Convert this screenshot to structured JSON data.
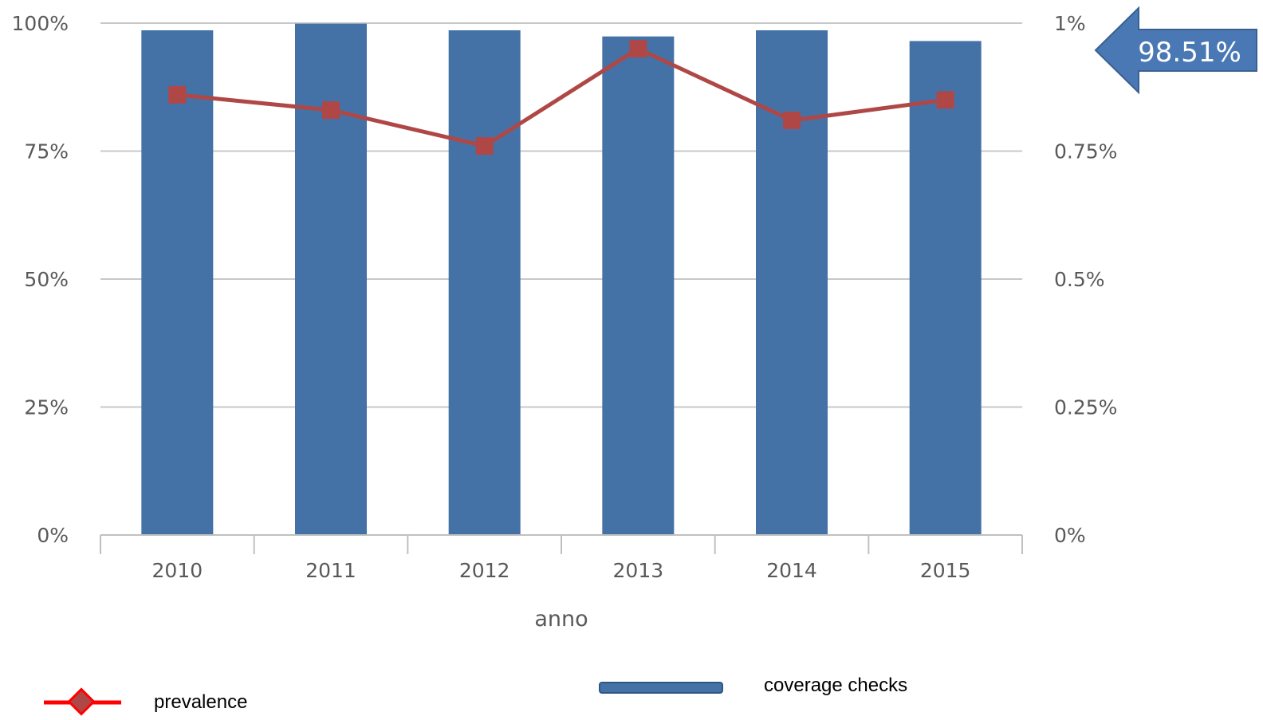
{
  "chart_data": {
    "type": "bar",
    "categories": [
      "2010",
      "2011",
      "2012",
      "2013",
      "2014",
      "2015"
    ],
    "xlabel": "anno",
    "series": [
      {
        "name": "coverage checks",
        "type": "bar",
        "axis": "left",
        "values": [
          98.6,
          99.9,
          98.6,
          97.4,
          98.6,
          96.5
        ]
      },
      {
        "name": "prevalence",
        "type": "line",
        "axis": "right",
        "values": [
          0.86,
          0.83,
          0.76,
          0.95,
          0.81,
          0.85
        ]
      }
    ],
    "y_left": {
      "ylim": [
        0,
        100
      ],
      "ticks": [
        0,
        25,
        50,
        75,
        100
      ],
      "tick_labels": [
        "0%",
        "25%",
        "50%",
        "75%",
        "100%"
      ]
    },
    "y_right": {
      "ylim": [
        0,
        1
      ],
      "ticks": [
        0,
        0.25,
        0.5,
        0.75,
        1
      ],
      "tick_labels": [
        "0%",
        "0.25%",
        "0.5%",
        "0.75%",
        "1%"
      ]
    },
    "grid": true,
    "legend": [
      {
        "label": "prevalence",
        "marker": "line-diamond"
      },
      {
        "label": "coverage checks",
        "marker": "bar"
      }
    ],
    "legend_placement": "bottom",
    "callout": {
      "text": "98.51%",
      "shape": "left-arrow"
    },
    "colors": {
      "bar": "#4472a6",
      "line": "#b04747",
      "legend_line": "#ff0000",
      "callout": "#4a78b4",
      "grid": "#c8c8c8"
    }
  }
}
